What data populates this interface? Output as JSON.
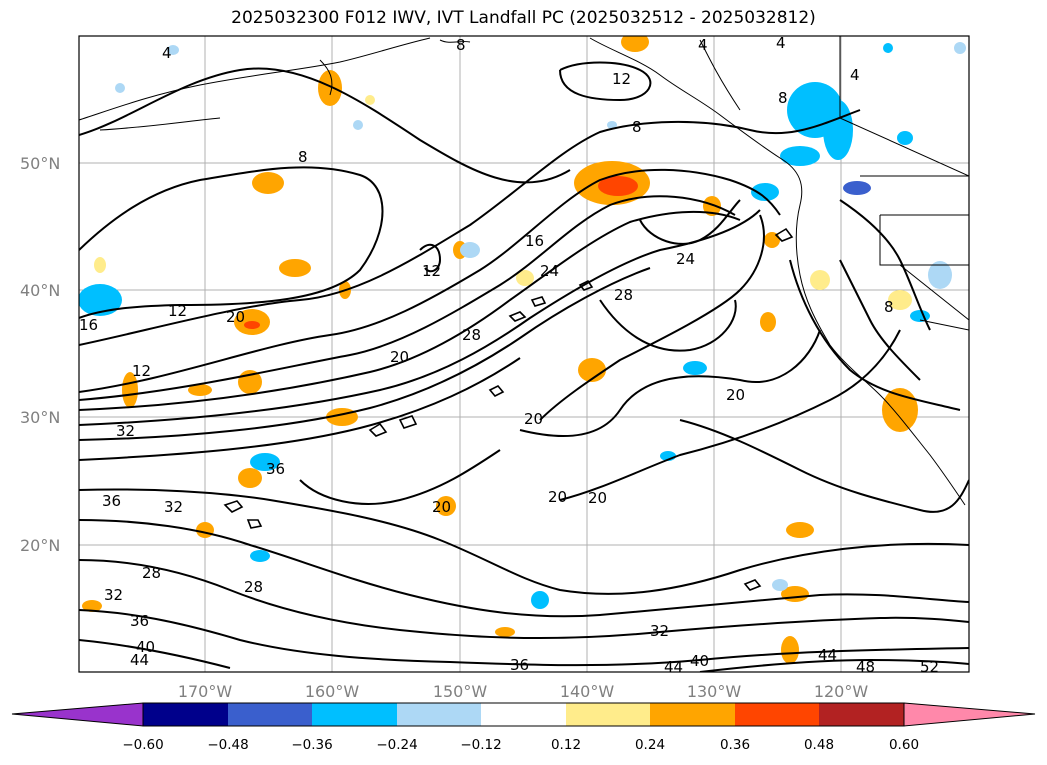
{
  "title": "2025032300 F012 IWV, IVT Landfall PC (2025032512 - 2025032812)",
  "map": {
    "lat_labels": [
      "50°N",
      "40°N",
      "30°N",
      "20°N"
    ],
    "lon_labels": [
      "170°W",
      "160°W",
      "150°W",
      "140°W",
      "130°W",
      "120°W"
    ]
  },
  "contour_labels": [
    "4",
    "8",
    "4",
    "4",
    "8",
    "4",
    "12",
    "8",
    "8",
    "12",
    "16",
    "24",
    "24",
    "28",
    "28",
    "20",
    "20",
    "20",
    "20",
    "20",
    "20",
    "12",
    "16",
    "12",
    "32",
    "36",
    "28",
    "32",
    "36",
    "28",
    "32",
    "36",
    "40",
    "44",
    "32",
    "36",
    "44",
    "40",
    "44",
    "48",
    "52",
    "20",
    "8"
  ],
  "colorbar": {
    "tick_labels": [
      "−0.60",
      "−0.48",
      "−0.36",
      "−0.24",
      "−0.12",
      "0.12",
      "0.24",
      "0.36",
      "0.48",
      "0.60"
    ],
    "colors": [
      "#9933cc",
      "#00008b",
      "#3a5fcd",
      "#00bfff",
      "#add8f5",
      "#ffffff",
      "#ffec8b",
      "#ffa500",
      "#ff4500",
      "#b22222",
      "#ff88aa"
    ]
  }
}
